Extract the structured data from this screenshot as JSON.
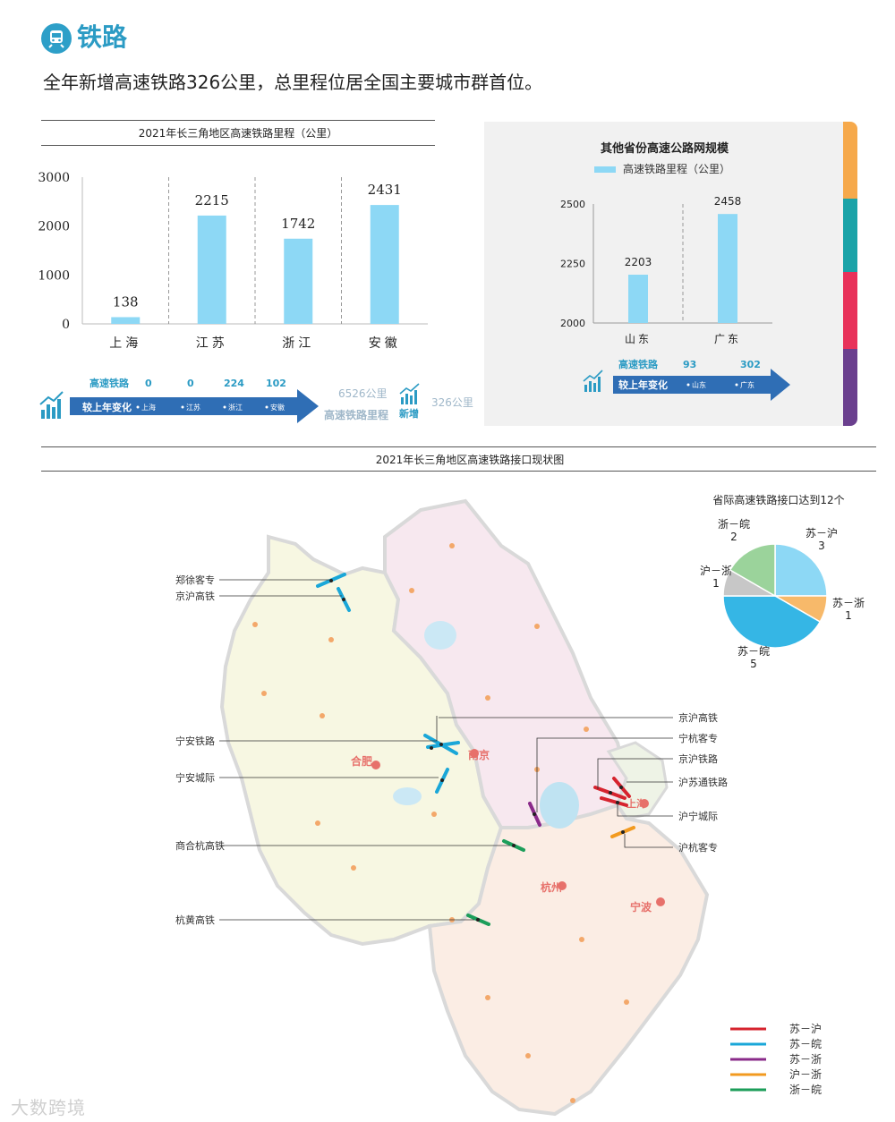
{
  "header": {
    "title": "铁路",
    "subtitle": "全年新增高速铁路326公里，总里程位居全国主要城市群首位。"
  },
  "chart_data": [
    {
      "type": "bar",
      "title": "2021年长三角地区高速铁路里程（公里）",
      "categories": [
        "上海",
        "江苏",
        "浙江",
        "安徽"
      ],
      "values": [
        138,
        2215,
        1742,
        2431
      ],
      "yticks": [
        "0",
        "1000",
        "2000",
        "3000"
      ],
      "ylim": [
        0,
        3000
      ],
      "color": "#8dd8f5",
      "grid": false
    },
    {
      "type": "bar",
      "title": "其他省份高速公路网规模",
      "legend": "高速铁路里程（公里）",
      "categories": [
        "山东",
        "广东"
      ],
      "values": [
        2203,
        2458
      ],
      "yticks": [
        "2000",
        "2250",
        "2500"
      ],
      "ylim": [
        2000,
        2500
      ],
      "color": "#8dd8f5",
      "legend_position": "top"
    },
    {
      "type": "pie",
      "title": "省际高速铁路接口达到12个",
      "slices": [
        {
          "label": "苏－沪",
          "value": 3,
          "color": "#8dd8f5"
        },
        {
          "label": "苏－浙",
          "value": 1,
          "color": "#f7b96a"
        },
        {
          "label": "苏－皖",
          "value": 5,
          "color": "#35b6e5"
        },
        {
          "label": "沪－浙",
          "value": 1,
          "color": "#c7c7c7"
        },
        {
          "label": "浙－皖",
          "value": 2,
          "color": "#9bd39b"
        }
      ]
    }
  ],
  "change1": {
    "row_label": "高速铁路",
    "arrow_label": "较上年变化",
    "values": [
      "0",
      "0",
      "224",
      "102"
    ],
    "regions": [
      "上海",
      "江苏",
      "浙江",
      "安徽"
    ],
    "total": "6526公里",
    "total_label": "高速铁路里程",
    "new_value": "326公里",
    "new_label": "新增"
  },
  "change2": {
    "row_label": "高速铁路",
    "arrow_label": "较上年变化",
    "values": [
      "93",
      "302"
    ],
    "regions": [
      "山东",
      "广东"
    ]
  },
  "map": {
    "title": "2021年长三角地区高速铁路接口现状图",
    "left_labels": [
      "郑徐客专",
      "京沪高铁",
      "宁安铁路",
      "宁安城际",
      "商合杭高铁",
      "杭黄高铁"
    ],
    "right_labels": [
      "京沪高铁",
      "宁杭客专",
      "京沪铁路",
      "沪苏通铁路",
      "沪宁城际",
      "沪杭客专"
    ],
    "cities": [
      "南京",
      "合肥",
      "杭州",
      "宁波",
      "上海"
    ],
    "legend": [
      {
        "label": "苏－沪",
        "color": "#d6232e"
      },
      {
        "label": "苏－皖",
        "color": "#1aa7d8"
      },
      {
        "label": "苏－浙",
        "color": "#8a2b8a"
      },
      {
        "label": "沪－浙",
        "color": "#f29a1f"
      },
      {
        "label": "浙－皖",
        "color": "#1c9e5a"
      }
    ]
  },
  "side_tabs": [
    "#f6a94b",
    "#1aa3a8",
    "#e8325a",
    "#6a3f8e"
  ],
  "watermark": "大数跨境"
}
